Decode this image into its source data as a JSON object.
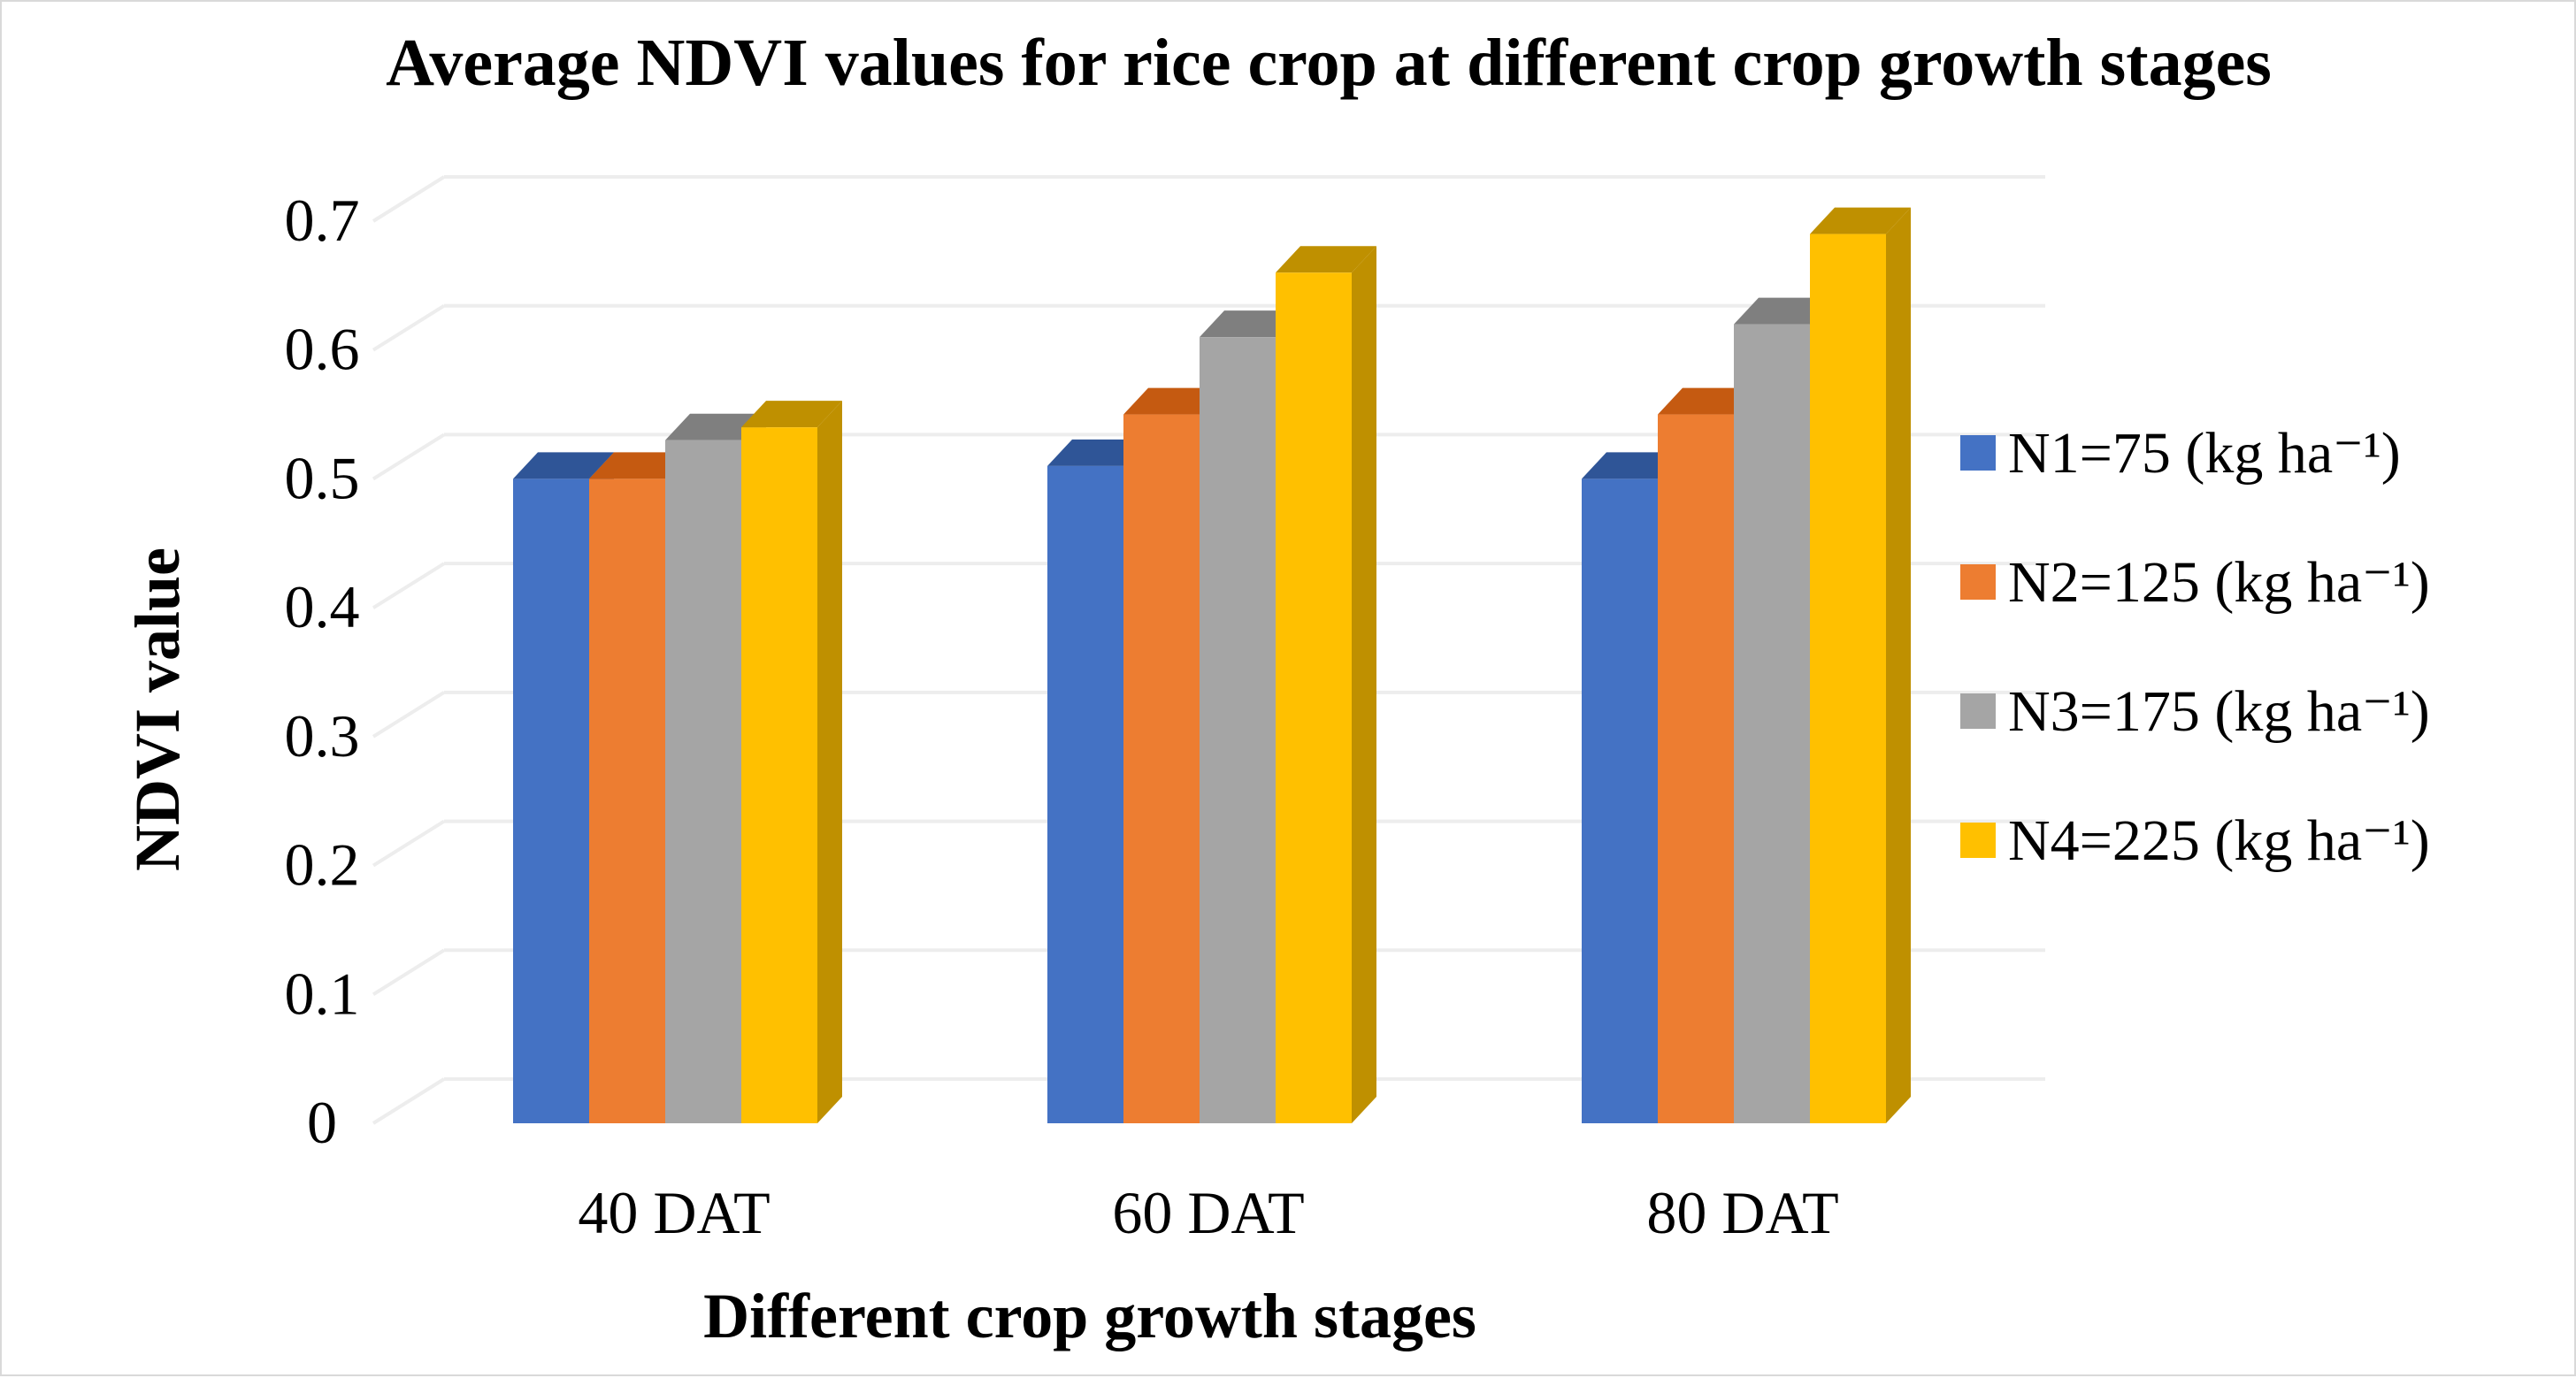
{
  "chart_data": {
    "type": "bar",
    "title": "Average NDVI values for rice crop at different crop growth stages",
    "xlabel": "Different crop growth stages",
    "ylabel": "NDVI value",
    "categories": [
      "40 DAT",
      "60 DAT",
      "80 DAT"
    ],
    "ylim": [
      0,
      0.7
    ],
    "yticks": [
      "0",
      "0.1",
      "0.2",
      "0.3",
      "0.4",
      "0.5",
      "0.6",
      "0.7"
    ],
    "grid": true,
    "legend_position": "right",
    "series": [
      {
        "name": "N1=75 (kg ha⁻¹)",
        "values": [
          0.5,
          0.51,
          0.5
        ],
        "color": "#4472C4",
        "side": "#2F5597",
        "top": "#2F5597"
      },
      {
        "name": "N2=125 (kg ha⁻¹)",
        "values": [
          0.5,
          0.55,
          0.55
        ],
        "color": "#ED7D31",
        "side": "#C55A11",
        "top": "#C55A11"
      },
      {
        "name": "N3=175 (kg ha⁻¹)",
        "values": [
          0.53,
          0.61,
          0.62
        ],
        "color": "#A5A5A5",
        "side": "#7F7F7F",
        "top": "#7F7F7F"
      },
      {
        "name": "N4=225 (kg ha⁻¹)",
        "values": [
          0.54,
          0.66,
          0.69
        ],
        "color": "#FFC000",
        "side": "#BF9000",
        "top": "#BF9000"
      }
    ]
  }
}
